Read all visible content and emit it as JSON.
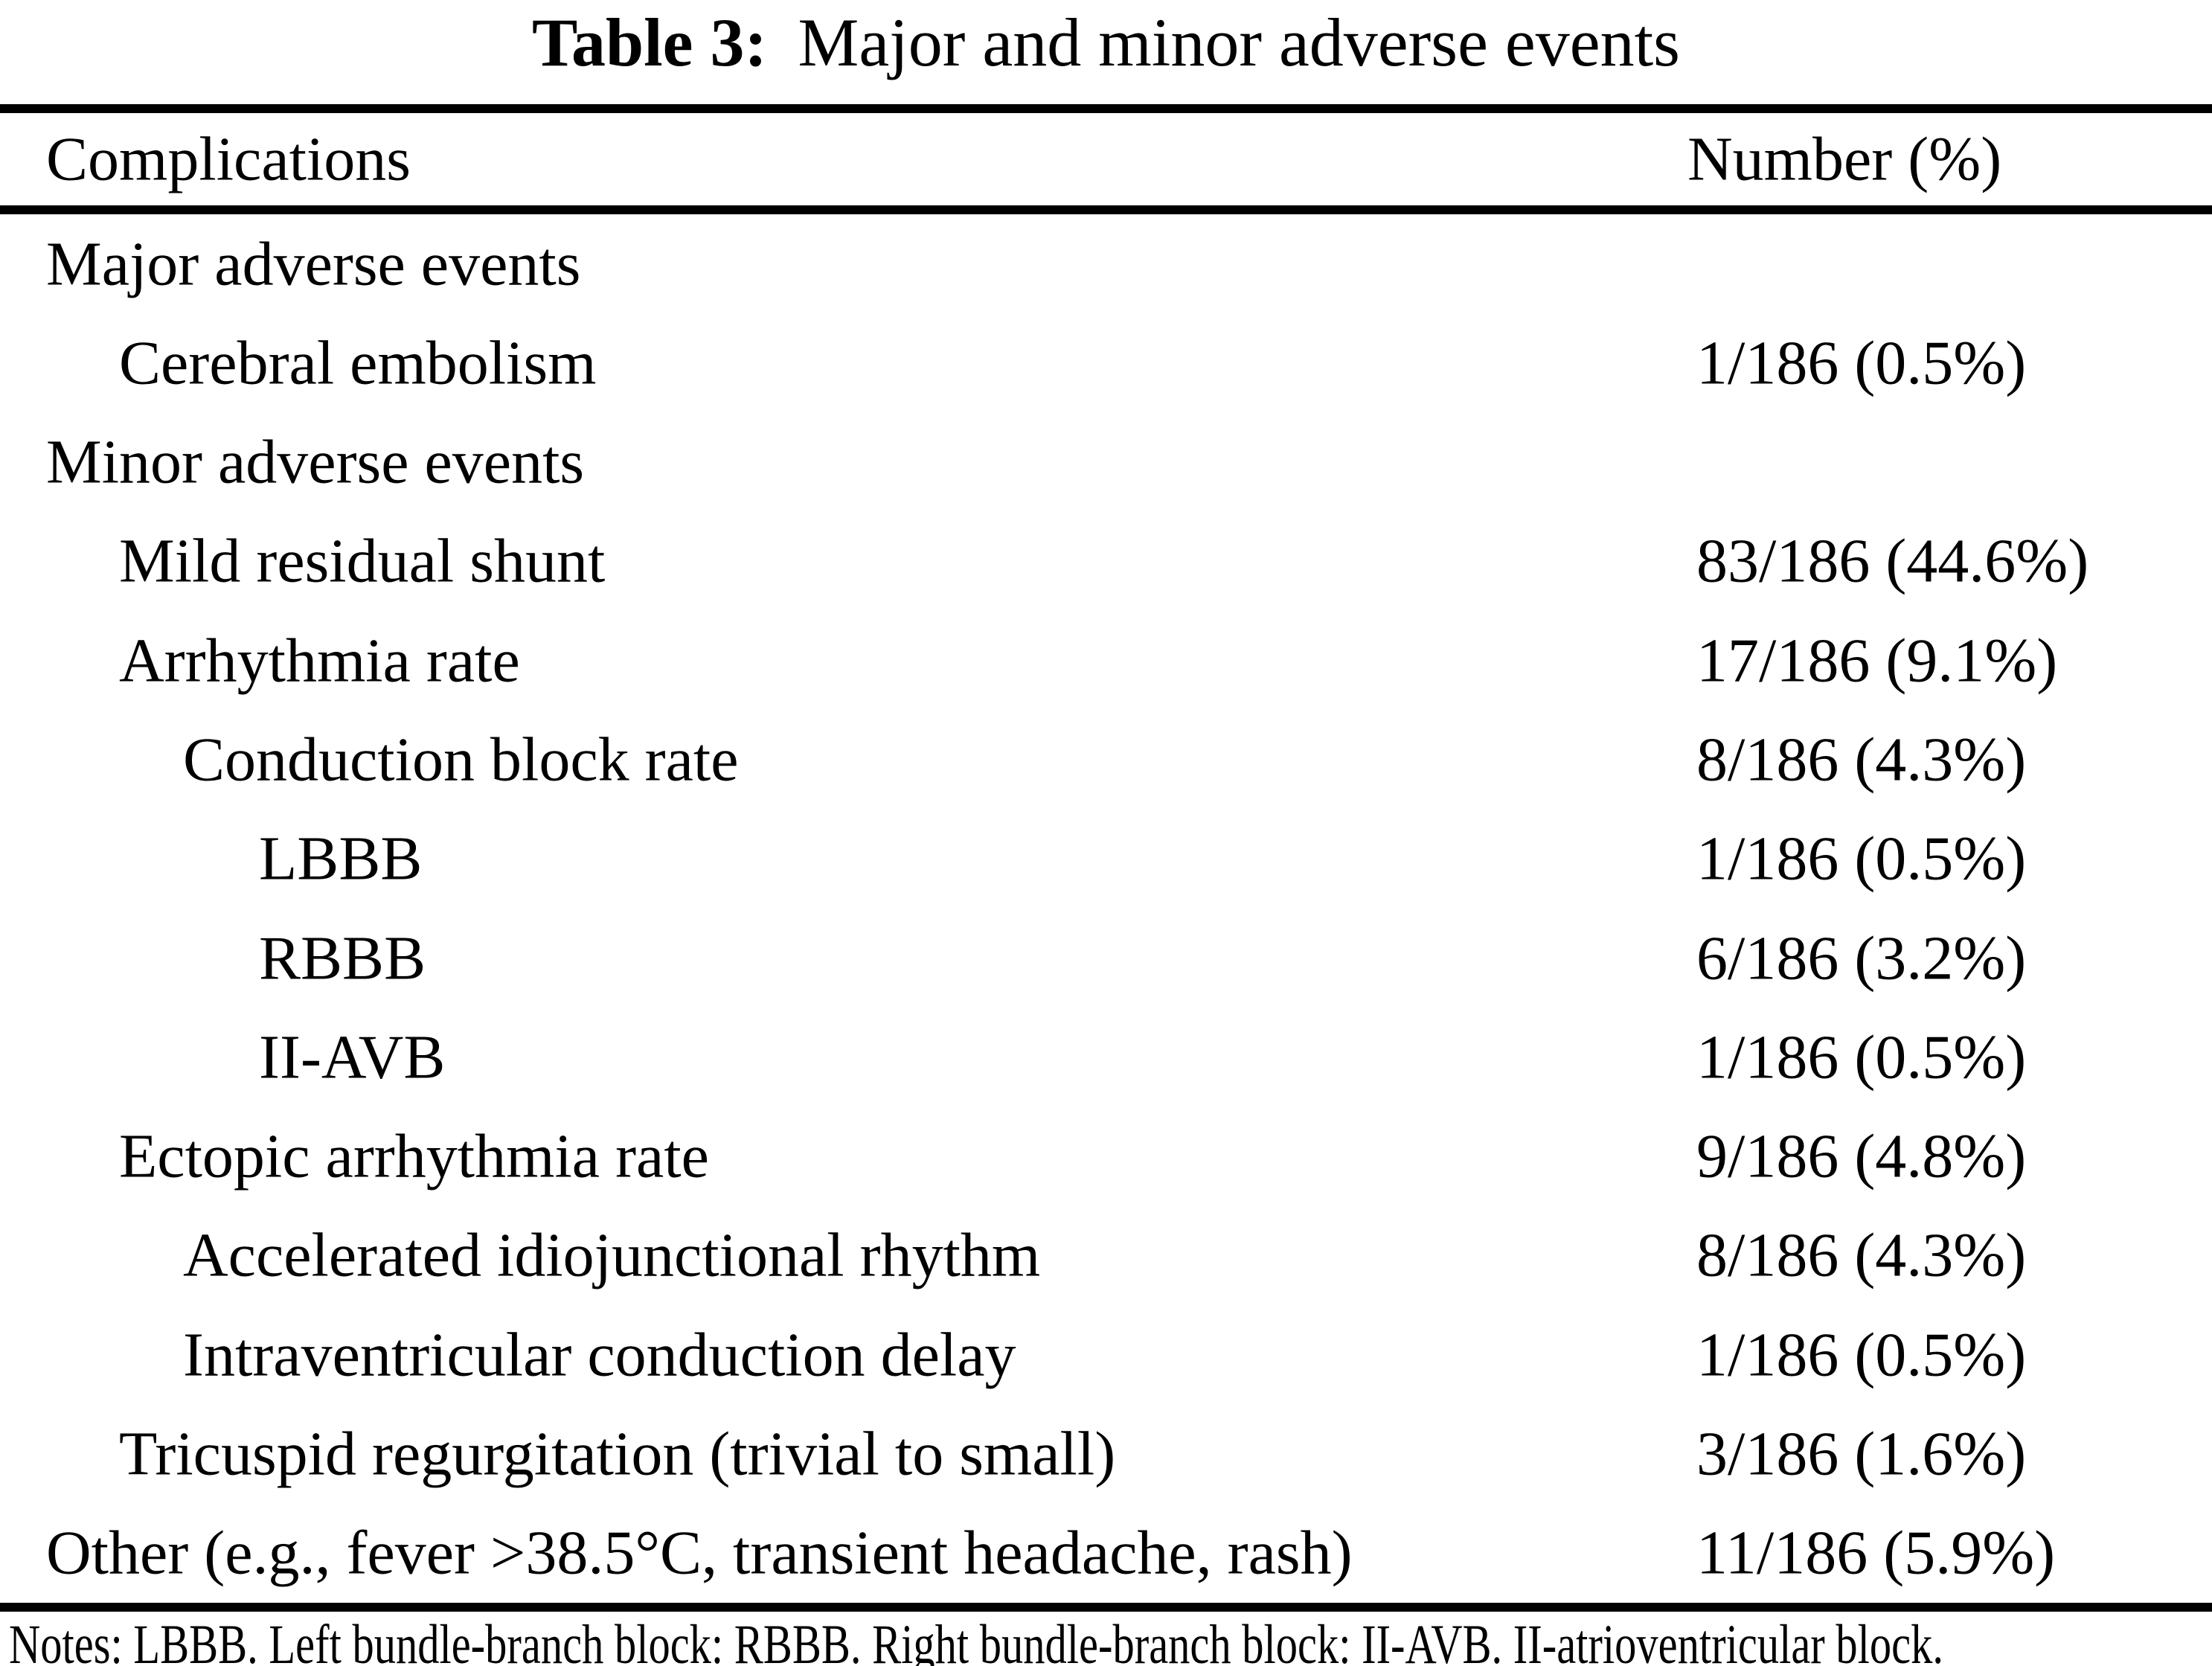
{
  "title": {
    "label": "Table 3:",
    "text": "Major and minor adverse events"
  },
  "table": {
    "columns": {
      "complications": "Complications",
      "number": "Number (%)"
    },
    "rows": [
      {
        "label": "Major adverse events",
        "indent": 0,
        "value": ""
      },
      {
        "label": "Cerebral embolism",
        "indent": 1,
        "value": "1/186 (0.5%)"
      },
      {
        "label": "Minor adverse events",
        "indent": 0,
        "value": ""
      },
      {
        "label": "Mild residual shunt",
        "indent": 1,
        "value": "83/186 (44.6%)"
      },
      {
        "label": "Arrhythmia rate",
        "indent": 1,
        "value": "17/186 (9.1%)"
      },
      {
        "label": "Conduction block rate",
        "indent": 2,
        "value": "8/186 (4.3%)"
      },
      {
        "label": "LBBB",
        "indent": 3,
        "value": "1/186 (0.5%)"
      },
      {
        "label": "RBBB",
        "indent": 3,
        "value": "6/186 (3.2%)"
      },
      {
        "label": "II-AVB",
        "indent": 3,
        "value": "1/186 (0.5%)"
      },
      {
        "label": "Ectopic arrhythmia rate",
        "indent": 1,
        "value": "9/186 (4.8%)"
      },
      {
        "label": "Accelerated idiojunctional rhythm",
        "indent": 2,
        "value": "8/186 (4.3%)"
      },
      {
        "label": "Intraventricular conduction delay",
        "indent": 2,
        "value": "1/186 (0.5%)"
      },
      {
        "label": "Tricuspid regurgitation (trivial to small)",
        "indent": 1,
        "value": "3/186 (1.6%)"
      },
      {
        "label": "Other (e.g., fever >38.5°C, transient headache, rash)",
        "indent": 0,
        "value": "11/186 (5.9%)"
      }
    ],
    "notes": "Notes: LBBB. Left bundle-branch block: RBBB. Right bundle-branch block: II-AVB. II-atrioventricular block."
  },
  "colors": {
    "background": "#ffffff",
    "text": "#000000",
    "rule": "#000000"
  }
}
